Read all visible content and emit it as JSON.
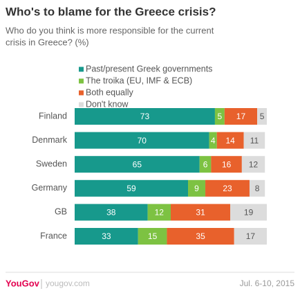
{
  "chart_data": {
    "type": "stacked-bar",
    "orientation": "horizontal",
    "title": "Who's to blame for the Greece crisis?",
    "subtitle": [
      "Who do you think is more responsible for the current",
      "crisis in Greece? (%)"
    ],
    "categories": [
      "Finland",
      "Denmark",
      "Sweden",
      "Germany",
      "GB",
      "France"
    ],
    "series": [
      {
        "name": "Past/present Greek governments",
        "color": "#17998c",
        "label_color": "#ffffff",
        "values": [
          73,
          70,
          65,
          59,
          38,
          33
        ]
      },
      {
        "name": "The troika (EU, IMF & ECB)",
        "color": "#7dc242",
        "label_color": "#ffffff",
        "values": [
          5,
          4,
          6,
          9,
          12,
          15
        ]
      },
      {
        "name": "Both equally",
        "color": "#e8612c",
        "label_color": "#ffffff",
        "values": [
          17,
          14,
          16,
          23,
          31,
          35
        ]
      },
      {
        "name": "Don't know",
        "color": "#dcdcdc",
        "label_color": "#555555",
        "values": [
          5,
          11,
          12,
          8,
          19,
          17
        ]
      }
    ],
    "xlim": [
      0,
      100
    ],
    "brand": "YouGov",
    "website": "yougov.com",
    "date": "Jul. 6-10, 2015"
  }
}
